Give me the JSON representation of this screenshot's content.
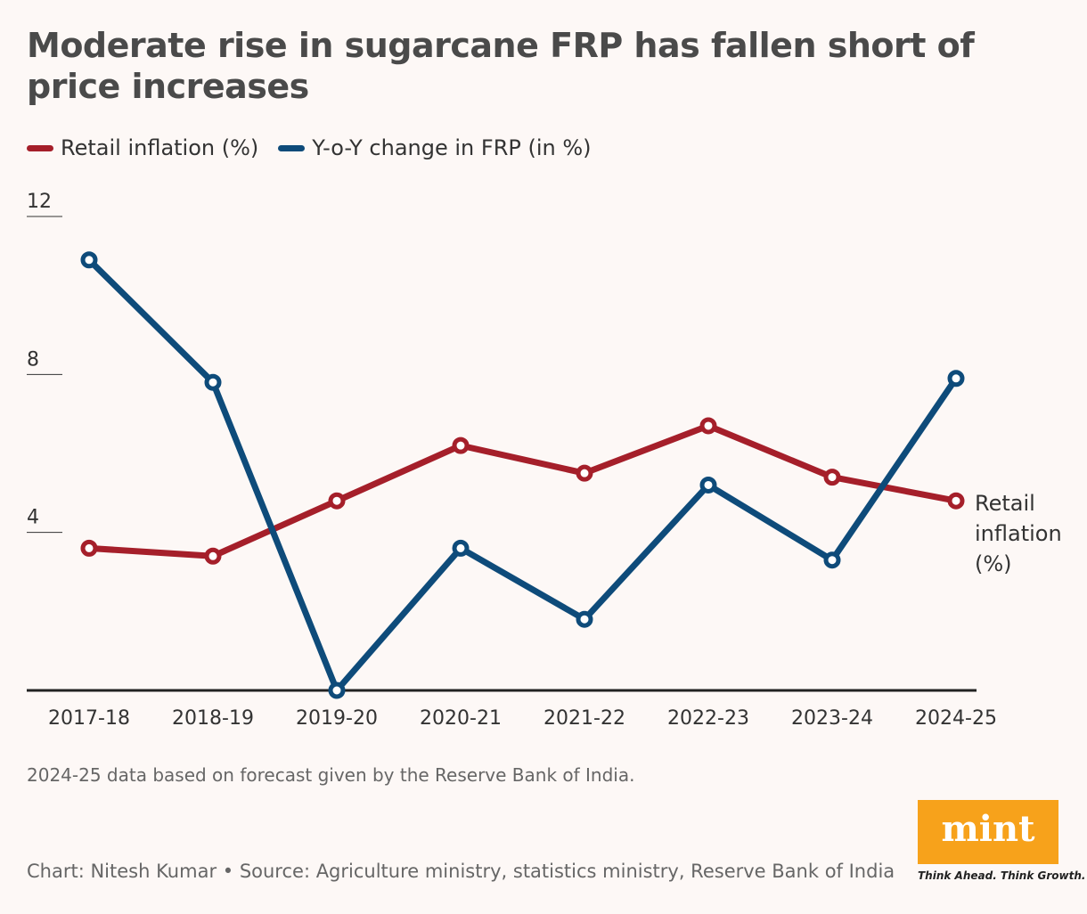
{
  "chart_data": {
    "type": "line",
    "title": "Moderate rise in sugarcane FRP has fallen short of price increases",
    "categories": [
      "2017-18",
      "2018-19",
      "2019-20",
      "2020-21",
      "2021-22",
      "2022-23",
      "2023-24",
      "2024-25"
    ],
    "series": [
      {
        "name": "Retail inflation (%)",
        "color": "#a51f2a",
        "values": [
          3.6,
          3.4,
          4.8,
          6.2,
          5.5,
          6.7,
          5.4,
          4.8
        ]
      },
      {
        "name": "Y-o-Y change in FRP (in %)",
        "color": "#0e4b7a",
        "values": [
          10.9,
          7.8,
          0,
          3.6,
          1.8,
          5.2,
          3.3,
          7.9
        ]
      }
    ],
    "ylim": [
      0,
      12
    ],
    "yticks": [
      4,
      8,
      12
    ],
    "annotation": "Retail inflation (%)",
    "note": "2024-25 data based on forecast given by the Reserve Bank of India.",
    "source": "Chart: Nitesh Kumar • Source: Agriculture ministry, statistics ministry, Reserve Bank of India",
    "logo": {
      "name": "mint",
      "tagline": "Think Ahead. Think Growth."
    }
  }
}
